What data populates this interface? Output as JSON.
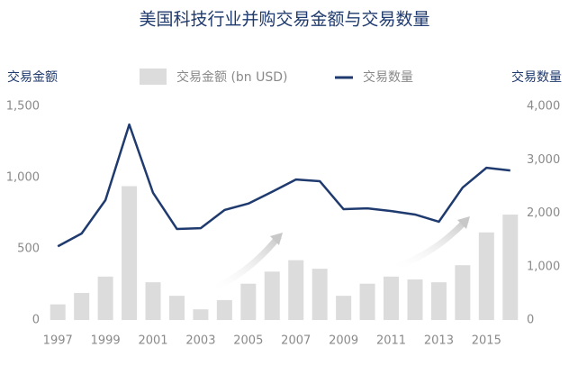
{
  "chart_data": {
    "type": "bar-line",
    "title": "美国科技行业并购交易金额与交易数量",
    "y_label": "交易金额",
    "y2_label": "交易数量",
    "categories": [
      "1997",
      null,
      "1999",
      null,
      "2001",
      null,
      "2003",
      null,
      "2005",
      null,
      "2007",
      null,
      "2009",
      null,
      "2011",
      null,
      "2013",
      null,
      "2015",
      null
    ],
    "series": [
      {
        "name": "交易金额 (bn USD)",
        "type": "bar",
        "color": "#dcdcdc",
        "values": [
          110,
          190,
          305,
          940,
          265,
          170,
          75,
          140,
          255,
          340,
          420,
          360,
          170,
          255,
          305,
          285,
          265,
          385,
          615,
          740
        ]
      },
      {
        "name": "交易数量",
        "type": "line",
        "axis": "y2",
        "color": "#1f3a6e",
        "values": [
          1380,
          1620,
          2245,
          3660,
          2380,
          1705,
          1720,
          2060,
          2180,
          2400,
          2630,
          2600,
          2075,
          2090,
          2040,
          1975,
          1840,
          2480,
          2850,
          2800
        ]
      }
    ],
    "ylim": [
      0,
      1500
    ],
    "yticks": [
      0,
      500,
      {
        "value": 1000,
        "label": "1,000"
      },
      {
        "value": 1500,
        "label": "1,500"
      }
    ],
    "y2lim": [
      0,
      4000
    ],
    "y2ticks": [
      0,
      {
        "value": 1000,
        "label": "1,000"
      },
      {
        "value": 2000,
        "label": "2,000"
      },
      {
        "value": 3000,
        "label": "3,000"
      },
      {
        "value": 4000,
        "label": "4,000"
      }
    ],
    "grid": false,
    "legend": "top"
  }
}
